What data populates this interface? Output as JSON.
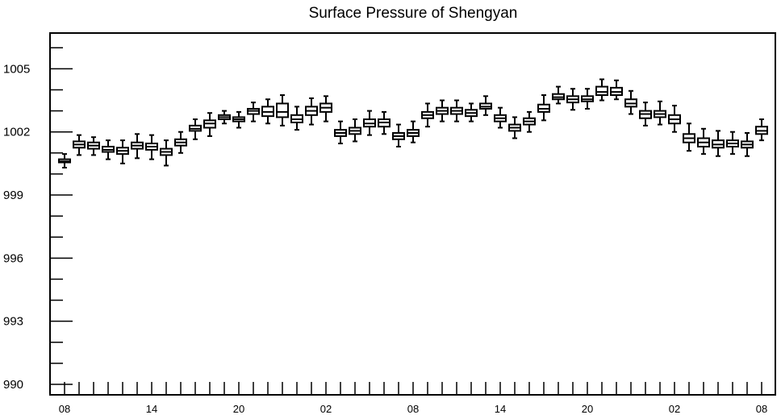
{
  "chart_data": {
    "type": "boxplot",
    "title": "Surface Pressure of Shengyan",
    "xlabel": "",
    "ylabel": "",
    "ylim": [
      990,
      1006.7
    ],
    "yticks": [
      990,
      993,
      996,
      999,
      1002,
      1005
    ],
    "x_tick_labels": [
      "08",
      "14",
      "20",
      "02",
      "08",
      "14",
      "20",
      "02",
      "08"
    ],
    "x_tick_label_positions": [
      0,
      6,
      12,
      18,
      24,
      30,
      36,
      42,
      48
    ],
    "grid": false,
    "boxes": [
      {
        "x": 0,
        "whisker_low": 1000.3,
        "q1": 1000.55,
        "median": 1000.6,
        "q3": 1000.7,
        "whisker_high": 1000.95
      },
      {
        "x": 1,
        "whisker_low": 1000.9,
        "q1": 1001.25,
        "median": 1001.4,
        "q3": 1001.55,
        "whisker_high": 1001.85
      },
      {
        "x": 2,
        "whisker_low": 1000.9,
        "q1": 1001.2,
        "median": 1001.35,
        "q3": 1001.5,
        "whisker_high": 1001.75
      },
      {
        "x": 3,
        "whisker_low": 1000.7,
        "q1": 1001.05,
        "median": 1001.15,
        "q3": 1001.3,
        "whisker_high": 1001.6
      },
      {
        "x": 4,
        "whisker_low": 1000.5,
        "q1": 1000.95,
        "median": 1001.1,
        "q3": 1001.25,
        "whisker_high": 1001.6
      },
      {
        "x": 5,
        "whisker_low": 1000.75,
        "q1": 1001.2,
        "median": 1001.35,
        "q3": 1001.5,
        "whisker_high": 1001.9
      },
      {
        "x": 6,
        "whisker_low": 1000.7,
        "q1": 1001.15,
        "median": 1001.3,
        "q3": 1001.45,
        "whisker_high": 1001.85
      },
      {
        "x": 7,
        "whisker_low": 1000.4,
        "q1": 1000.9,
        "median": 1001.05,
        "q3": 1001.2,
        "whisker_high": 1001.6
      },
      {
        "x": 8,
        "whisker_low": 1001.0,
        "q1": 1001.35,
        "median": 1001.5,
        "q3": 1001.65,
        "whisker_high": 1002.0
      },
      {
        "x": 9,
        "whisker_low": 1001.65,
        "q1": 1002.05,
        "median": 1002.15,
        "q3": 1002.3,
        "whisker_high": 1002.6
      },
      {
        "x": 10,
        "whisker_low": 1001.8,
        "q1": 1002.2,
        "median": 1002.4,
        "q3": 1002.55,
        "whisker_high": 1002.9
      },
      {
        "x": 11,
        "whisker_low": 1002.4,
        "q1": 1002.6,
        "median": 1002.7,
        "q3": 1002.8,
        "whisker_high": 1003.0
      },
      {
        "x": 12,
        "whisker_low": 1002.2,
        "q1": 1002.5,
        "median": 1002.6,
        "q3": 1002.7,
        "whisker_high": 1002.95
      },
      {
        "x": 13,
        "whisker_low": 1002.5,
        "q1": 1002.85,
        "median": 1003.0,
        "q3": 1003.1,
        "whisker_high": 1003.4
      },
      {
        "x": 14,
        "whisker_low": 1002.4,
        "q1": 1002.75,
        "median": 1002.95,
        "q3": 1003.2,
        "whisker_high": 1003.55
      },
      {
        "x": 15,
        "whisker_low": 1002.3,
        "q1": 1002.7,
        "median": 1002.95,
        "q3": 1003.35,
        "whisker_high": 1003.75
      },
      {
        "x": 16,
        "whisker_low": 1002.1,
        "q1": 1002.45,
        "median": 1002.6,
        "q3": 1002.8,
        "whisker_high": 1003.2
      },
      {
        "x": 17,
        "whisker_low": 1002.35,
        "q1": 1002.8,
        "median": 1003.0,
        "q3": 1003.2,
        "whisker_high": 1003.6
      },
      {
        "x": 18,
        "whisker_low": 1002.5,
        "q1": 1002.95,
        "median": 1003.15,
        "q3": 1003.35,
        "whisker_high": 1003.7
      },
      {
        "x": 19,
        "whisker_low": 1001.45,
        "q1": 1001.8,
        "median": 1001.95,
        "q3": 1002.1,
        "whisker_high": 1002.5
      },
      {
        "x": 20,
        "whisker_low": 1001.55,
        "q1": 1001.9,
        "median": 1002.05,
        "q3": 1002.2,
        "whisker_high": 1002.6
      },
      {
        "x": 21,
        "whisker_low": 1001.85,
        "q1": 1002.25,
        "median": 1002.4,
        "q3": 1002.6,
        "whisker_high": 1003.0
      },
      {
        "x": 22,
        "whisker_low": 1001.9,
        "q1": 1002.25,
        "median": 1002.45,
        "q3": 1002.6,
        "whisker_high": 1002.95
      },
      {
        "x": 23,
        "whisker_low": 1001.3,
        "q1": 1001.65,
        "median": 1001.8,
        "q3": 1001.95,
        "whisker_high": 1002.35
      },
      {
        "x": 24,
        "whisker_low": 1001.5,
        "q1": 1001.8,
        "median": 1001.95,
        "q3": 1002.1,
        "whisker_high": 1002.5
      },
      {
        "x": 25,
        "whisker_low": 1002.25,
        "q1": 1002.65,
        "median": 1002.8,
        "q3": 1002.95,
        "whisker_high": 1003.35
      },
      {
        "x": 26,
        "whisker_low": 1002.5,
        "q1": 1002.85,
        "median": 1003.0,
        "q3": 1003.15,
        "whisker_high": 1003.5
      },
      {
        "x": 27,
        "whisker_low": 1002.5,
        "q1": 1002.85,
        "median": 1003.0,
        "q3": 1003.15,
        "whisker_high": 1003.5
      },
      {
        "x": 28,
        "whisker_low": 1002.5,
        "q1": 1002.75,
        "median": 1002.9,
        "q3": 1003.05,
        "whisker_high": 1003.35
      },
      {
        "x": 29,
        "whisker_low": 1002.8,
        "q1": 1003.1,
        "median": 1003.2,
        "q3": 1003.35,
        "whisker_high": 1003.7
      },
      {
        "x": 30,
        "whisker_low": 1002.2,
        "q1": 1002.5,
        "median": 1002.65,
        "q3": 1002.8,
        "whisker_high": 1003.15
      },
      {
        "x": 31,
        "whisker_low": 1001.7,
        "q1": 1002.05,
        "median": 1002.2,
        "q3": 1002.35,
        "whisker_high": 1002.7
      },
      {
        "x": 32,
        "whisker_low": 1002.0,
        "q1": 1002.35,
        "median": 1002.5,
        "q3": 1002.65,
        "whisker_high": 1002.95
      },
      {
        "x": 33,
        "whisker_low": 1002.55,
        "q1": 1002.95,
        "median": 1003.1,
        "q3": 1003.3,
        "whisker_high": 1003.75
      },
      {
        "x": 34,
        "whisker_low": 1003.35,
        "q1": 1003.55,
        "median": 1003.65,
        "q3": 1003.8,
        "whisker_high": 1004.15
      },
      {
        "x": 35,
        "whisker_low": 1003.05,
        "q1": 1003.4,
        "median": 1003.55,
        "q3": 1003.7,
        "whisker_high": 1004.05
      },
      {
        "x": 36,
        "whisker_low": 1003.1,
        "q1": 1003.45,
        "median": 1003.55,
        "q3": 1003.7,
        "whisker_high": 1004.05
      },
      {
        "x": 37,
        "whisker_low": 1003.5,
        "q1": 1003.75,
        "median": 1003.9,
        "q3": 1004.15,
        "whisker_high": 1004.5
      },
      {
        "x": 38,
        "whisker_low": 1003.55,
        "q1": 1003.75,
        "median": 1003.9,
        "q3": 1004.1,
        "whisker_high": 1004.45
      },
      {
        "x": 39,
        "whisker_low": 1002.85,
        "q1": 1003.2,
        "median": 1003.35,
        "q3": 1003.55,
        "whisker_high": 1003.95
      },
      {
        "x": 40,
        "whisker_low": 1002.3,
        "q1": 1002.65,
        "median": 1002.85,
        "q3": 1003.0,
        "whisker_high": 1003.4
      },
      {
        "x": 41,
        "whisker_low": 1002.35,
        "q1": 1002.7,
        "median": 1002.85,
        "q3": 1003.0,
        "whisker_high": 1003.45
      },
      {
        "x": 42,
        "whisker_low": 1002.0,
        "q1": 1002.4,
        "median": 1002.6,
        "q3": 1002.8,
        "whisker_high": 1003.25
      },
      {
        "x": 43,
        "whisker_low": 1001.1,
        "q1": 1001.5,
        "median": 1001.7,
        "q3": 1001.9,
        "whisker_high": 1002.4
      },
      {
        "x": 44,
        "whisker_low": 1000.95,
        "q1": 1001.3,
        "median": 1001.5,
        "q3": 1001.7,
        "whisker_high": 1002.15
      },
      {
        "x": 45,
        "whisker_low": 1000.85,
        "q1": 1001.25,
        "median": 1001.4,
        "q3": 1001.6,
        "whisker_high": 1002.05
      },
      {
        "x": 46,
        "whisker_low": 1000.95,
        "q1": 1001.3,
        "median": 1001.45,
        "q3": 1001.6,
        "whisker_high": 1002.0
      },
      {
        "x": 47,
        "whisker_low": 1000.85,
        "q1": 1001.25,
        "median": 1001.4,
        "q3": 1001.55,
        "whisker_high": 1001.95
      },
      {
        "x": 48,
        "whisker_low": 1001.6,
        "q1": 1001.9,
        "median": 1002.05,
        "q3": 1002.25,
        "whisker_high": 1002.6
      }
    ],
    "colors": {
      "box_fill": "#ffffff",
      "box_stroke": "#000000",
      "axis": "#000000",
      "background": "#ffffff"
    }
  }
}
